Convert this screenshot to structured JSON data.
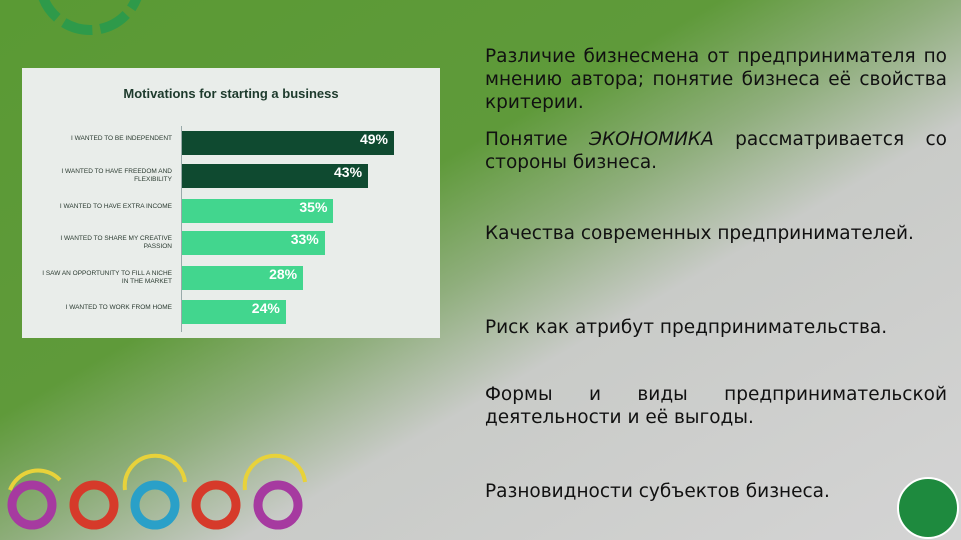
{
  "chart_data": {
    "type": "bar",
    "orientation": "horizontal",
    "title": "Motivations for starting a business",
    "categories": [
      "I WANTED TO BE INDEPENDENT",
      "I WANTED TO HAVE FREEDOM AND FLEXIBILITY",
      "I WANTED TO HAVE EXTRA INCOME",
      "I WANTED TO SHARE MY CREATIVE PASSION",
      "I SAW AN OPPORTUNITY TO FILL A NICHE IN THE MARKET",
      "I WANTED TO WORK FROM HOME"
    ],
    "values": [
      49,
      43,
      35,
      33,
      28,
      24
    ],
    "value_labels": [
      "49%",
      "43%",
      "35%",
      "33%",
      "28%",
      "24%"
    ],
    "colors": [
      "#0f4a30",
      "#0f4a30",
      "#42d68e",
      "#42d68e",
      "#42d68e",
      "#42d68e"
    ]
  },
  "slide": {
    "paragraphs": [
      [
        "Различие бизнесмена от предпринимателя по мнению автора; понятие бизнеса её свойства критерии."
      ],
      [
        "Понятие ",
        "ЭКОНОМИКА",
        " рассматривается со стороны бизнеса."
      ],
      [
        "Качества современных предпринимателей."
      ],
      [
        "Риск как атрибут предпринимательства."
      ],
      [
        "Формы и виды предпринимательской деятельности и её выгоды."
      ],
      [
        "Разновидности субъектов бизнеса."
      ]
    ]
  }
}
